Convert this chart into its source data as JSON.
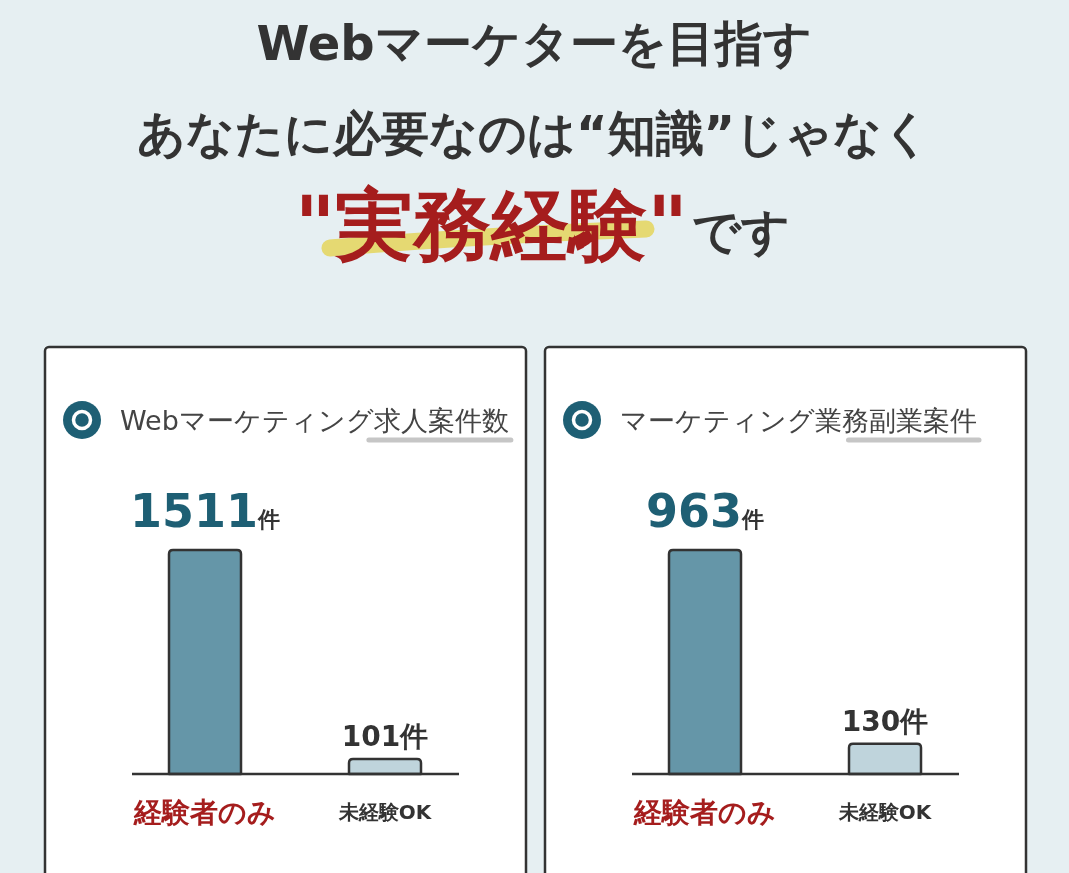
{
  "chart_data": [
    {
      "type": "bar",
      "title": "Webマーケティング求人案件数",
      "annotations": [
        "Webマーケターを目指す",
        "あなたに必要なのは“知識”じゃなく",
        "\"実務経験\"",
        "です"
      ],
      "categories": [
        "経験者のみ",
        "未経験OK"
      ],
      "values": [
        1511,
        101
      ],
      "colors": [
        "#6596a8",
        "#bfd4dc"
      ],
      "value_labels": [
        "1511件",
        "101件"
      ]
    },
    {
      "type": "bar",
      "title": "マーケティング業務副業案件",
      "categories": [
        "経験者のみ",
        "未経験OK"
      ],
      "values": [
        963,
        130
      ],
      "colors": [
        "#6596a8",
        "#bfd4dc"
      ],
      "value_labels": [
        "963件",
        "130件"
      ]
    }
  ]
}
